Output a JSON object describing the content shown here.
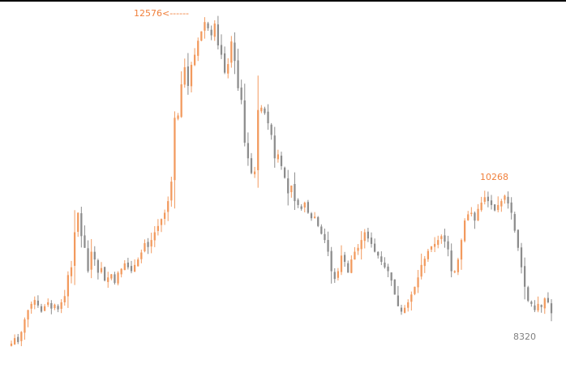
{
  "chart_data": {
    "type": "candlestick",
    "title": "",
    "xlabel": "",
    "ylabel": "",
    "ylim": [
      8150,
      12700
    ],
    "colors": {
      "up": "#f29a5e",
      "down": "#8c8c8c",
      "frame": "#000000",
      "label_high": "#f0803c",
      "label_mid": "#f0803c",
      "label_low": "#808080"
    },
    "annotations": {
      "high": {
        "text": "12576<------",
        "value": 12576
      },
      "mid": {
        "text": "10268",
        "value": 10268
      },
      "low": {
        "text": "8320",
        "value": 8320
      }
    },
    "closes": [
      8370,
      8440,
      8390,
      8520,
      8680,
      8800,
      8880,
      8930,
      8860,
      8780,
      8850,
      8900,
      8820,
      8870,
      8810,
      8900,
      8980,
      9250,
      9350,
      9800,
      10050,
      9750,
      9600,
      9300,
      9550,
      9450,
      9280,
      9340,
      9180,
      9220,
      9260,
      9150,
      9280,
      9330,
      9400,
      9350,
      9300,
      9380,
      9450,
      9540,
      9660,
      9610,
      9700,
      9800,
      9880,
      9970,
      10050,
      10200,
      10450,
      11270,
      11300,
      11700,
      11920,
      11680,
      11950,
      12080,
      12260,
      12380,
      12500,
      12420,
      12330,
      12480,
      12200,
      12080,
      11850,
      11960,
      12250,
      12000,
      11650,
      11500,
      10950,
      10750,
      10560,
      10580,
      11370,
      11400,
      11330,
      11200,
      11050,
      10750,
      10800,
      10650,
      10500,
      10300,
      10400,
      10200,
      10150,
      10100,
      10180,
      10050,
      9980,
      10000,
      9880,
      9780,
      9700,
      9550,
      9300,
      9200,
      9300,
      9500,
      9420,
      9280,
      9450,
      9550,
      9600,
      9700,
      9800,
      9720,
      9650,
      9550,
      9500,
      9420,
      9350,
      9300,
      9180,
      9000,
      8850,
      8780,
      8830,
      8900,
      9000,
      9100,
      9220,
      9380,
      9460,
      9560,
      9620,
      9650,
      9700,
      9750,
      9680,
      9580,
      9300,
      9300,
      9450,
      9700,
      9950,
      10030,
      10050,
      9950,
      10100,
      10180,
      10250,
      10200,
      10150,
      10080,
      10150,
      10200,
      10270,
      10170,
      10050,
      9820,
      9600,
      9350,
      9100,
      8920,
      8880,
      8800,
      8880,
      8840,
      8950,
      8900,
      8760
    ]
  }
}
